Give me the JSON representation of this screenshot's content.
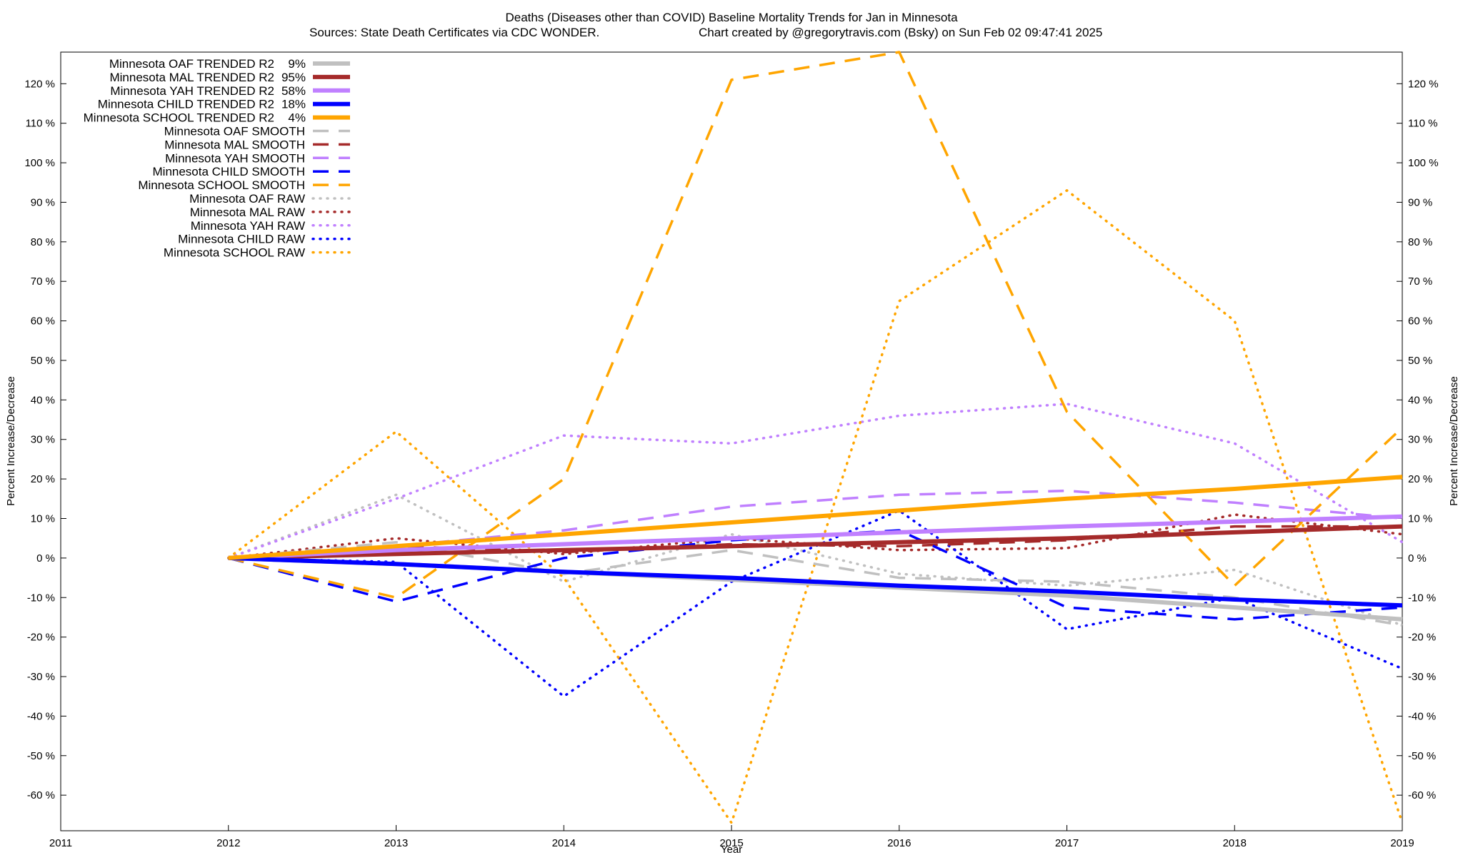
{
  "chart_data": {
    "type": "line",
    "title": "Deaths (Diseases other than COVID)  Baseline Mortality Trends for Jan in Minnesota",
    "subtitle_left": "Sources: State Death Certificates via CDC WONDER.",
    "subtitle_right": "Chart created by @gregorytravis.com (Bsky) on Sun Feb 02 09:47:41 2025",
    "xlabel": "Year",
    "ylabel_left": "Percent Increase/Decrease",
    "ylabel_right": "Percent Increase/Decrease",
    "xlim": [
      2011,
      2019
    ],
    "ylim": [
      -69,
      128
    ],
    "x_ticks": [
      "2011",
      "2012",
      "2013",
      "2014",
      "2015",
      "2016",
      "2017",
      "2018",
      "2019"
    ],
    "y_ticks_values": [
      120,
      110,
      100,
      90,
      80,
      70,
      60,
      50,
      40,
      30,
      20,
      10,
      0,
      -10,
      -20,
      -30,
      -40,
      -50,
      -60
    ],
    "y_ticks_left": [
      "120 %",
      "110 %",
      "100 %",
      "90 %",
      "80 %",
      "70 %",
      "60 %",
      "50 %",
      "40 %",
      "30 %",
      "20 %",
      "10 %",
      "0 %",
      "-10 %",
      "-20 %",
      "-30 %",
      "-40 %",
      "-50 %",
      "-60 %"
    ],
    "y_ticks_right": [
      "120 %",
      "110 %",
      "100 %",
      "90 %",
      "80 %",
      "70 %",
      "60 %",
      "50 %",
      "40 %",
      "30 %",
      "20 %",
      "10 %",
      "0 %",
      "-10 %",
      "-20 %",
      "-30 %",
      "-40 %",
      "-50 %",
      "-60 %"
    ],
    "grid": false,
    "legend_position": "top-left",
    "x": [
      2012,
      2013,
      2014,
      2015,
      2016,
      2017,
      2018,
      2019
    ],
    "series": [
      {
        "name": "Minnesota OAF TRENDED R2",
        "r2": "9%",
        "style": "solid",
        "color": "#c0c0c0",
        "values": [
          0,
          -1.5,
          -3.5,
          -5.5,
          -7.5,
          -9.5,
          -12.5,
          -15.5
        ]
      },
      {
        "name": "Minnesota MAL TRENDED R2",
        "r2": "95%",
        "style": "solid",
        "color": "#a52a2a",
        "values": [
          0,
          1,
          2,
          3,
          4,
          5,
          6.5,
          8
        ]
      },
      {
        "name": "Minnesota YAH TRENDED R2",
        "r2": "58%",
        "style": "solid",
        "color": "#c080ff",
        "values": [
          0,
          2,
          3.5,
          5,
          6.5,
          8,
          9.2,
          10.5
        ]
      },
      {
        "name": "Minnesota CHILD TRENDED R2",
        "r2": "18%",
        "style": "solid",
        "color": "#0000ff",
        "values": [
          0,
          -1.5,
          -3.5,
          -5,
          -7,
          -8.5,
          -10.5,
          -12
        ]
      },
      {
        "name": "Minnesota SCHOOL TRENDED R2",
        "r2": "4%",
        "style": "solid",
        "color": "#ffa500",
        "values": [
          0,
          3,
          6,
          9,
          12,
          15,
          17.5,
          20.5
        ]
      },
      {
        "name": "Minnesota OAF SMOOTH",
        "r2": "",
        "style": "dashed",
        "color": "#c0c0c0",
        "values": [
          0,
          4,
          -4,
          2,
          -5,
          -6,
          -10,
          -17
        ]
      },
      {
        "name": "Minnesota MAL SMOOTH",
        "r2": "",
        "style": "dashed",
        "color": "#a52a2a",
        "values": [
          0,
          3,
          1.5,
          3.5,
          3,
          4.5,
          8,
          8
        ]
      },
      {
        "name": "Minnesota YAH SMOOTH",
        "r2": "",
        "style": "dashed",
        "color": "#c080ff",
        "values": [
          0,
          3,
          7,
          13,
          16,
          17,
          14,
          10
        ]
      },
      {
        "name": "Minnesota CHILD SMOOTH",
        "r2": "",
        "style": "dashed",
        "color": "#0000ff",
        "values": [
          0,
          -11,
          0,
          4.5,
          7,
          -12.5,
          -15.5,
          -12.5
        ]
      },
      {
        "name": "Minnesota SCHOOL SMOOTH",
        "r2": "",
        "style": "dashed",
        "color": "#ffa500",
        "values": [
          0,
          -10,
          20,
          121,
          128,
          37,
          -7,
          33
        ]
      },
      {
        "name": "Minnesota OAF RAW",
        "r2": "",
        "style": "dotted",
        "color": "#c0c0c0",
        "values": [
          0,
          16,
          -6,
          6,
          -4,
          -7,
          -3,
          -17
        ]
      },
      {
        "name": "Minnesota MAL RAW",
        "r2": "",
        "style": "dotted",
        "color": "#a52a2a",
        "values": [
          0,
          5,
          1,
          5,
          2,
          2.5,
          11,
          6
        ]
      },
      {
        "name": "Minnesota YAH RAW",
        "r2": "",
        "style": "dotted",
        "color": "#c080ff",
        "values": [
          0,
          15,
          31,
          29,
          36,
          39,
          29,
          4
        ]
      },
      {
        "name": "Minnesota CHILD RAW",
        "r2": "",
        "style": "dotted",
        "color": "#0000ff",
        "values": [
          0,
          -1,
          -35,
          -6,
          12,
          -18,
          -10,
          -28
        ]
      },
      {
        "name": "Minnesota SCHOOL RAW",
        "r2": "",
        "style": "dotted",
        "color": "#ffa500",
        "values": [
          0,
          32,
          -5,
          -67,
          65,
          93,
          60,
          -67
        ]
      }
    ]
  }
}
